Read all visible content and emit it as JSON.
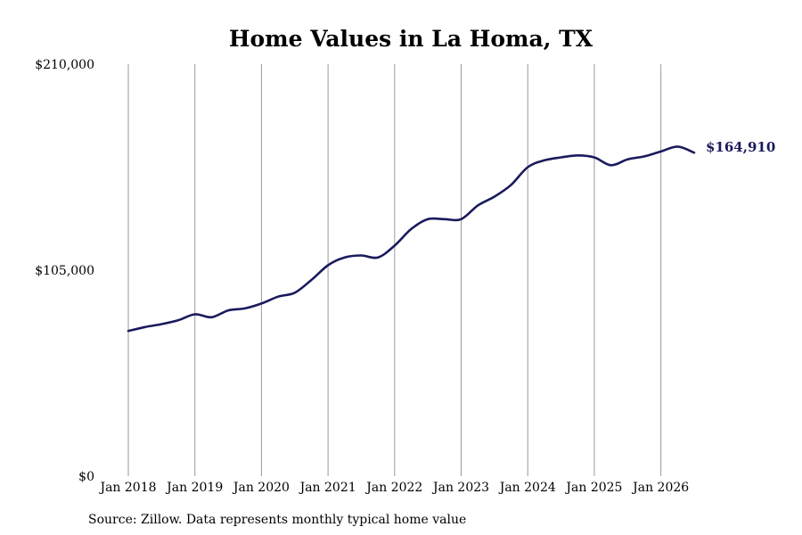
{
  "chart_data": {
    "type": "line",
    "title": "Home Values in La Homa, TX",
    "source": "Source: Zillow. Data represents monthly typical home value",
    "y_ticks": [
      {
        "value": 0,
        "label": "$0"
      },
      {
        "value": 105000,
        "label": "$105,000"
      },
      {
        "value": 210000,
        "label": "$210,000"
      }
    ],
    "ylim": [
      0,
      210000
    ],
    "xlim": [
      "2018-01",
      "2026-07"
    ],
    "x_ticks": [
      {
        "date": "2018-01",
        "label": "Jan 2018"
      },
      {
        "date": "2019-01",
        "label": "Jan 2019"
      },
      {
        "date": "2020-01",
        "label": "Jan 2020"
      },
      {
        "date": "2021-01",
        "label": "Jan 2021"
      },
      {
        "date": "2022-01",
        "label": "Jan 2022"
      },
      {
        "date": "2023-01",
        "label": "Jan 2023"
      },
      {
        "date": "2024-01",
        "label": "Jan 2024"
      },
      {
        "date": "2025-01",
        "label": "Jan 2025"
      },
      {
        "date": "2026-01",
        "label": "Jan 2026"
      }
    ],
    "grid": "vertical",
    "line_color": "#1a1a5e",
    "end_label": "$164,910",
    "series": [
      {
        "points": [
          [
            "2018-01",
            74000
          ],
          [
            "2018-04",
            76000
          ],
          [
            "2018-07",
            77500
          ],
          [
            "2018-10",
            79500
          ],
          [
            "2019-01",
            82500
          ],
          [
            "2019-04",
            81000
          ],
          [
            "2019-07",
            84500
          ],
          [
            "2019-10",
            85500
          ],
          [
            "2020-01",
            88000
          ],
          [
            "2020-04",
            91500
          ],
          [
            "2020-07",
            93500
          ],
          [
            "2020-10",
            100000
          ],
          [
            "2021-01",
            107500
          ],
          [
            "2021-04",
            111500
          ],
          [
            "2021-07",
            112500
          ],
          [
            "2021-10",
            111500
          ],
          [
            "2022-01",
            117500
          ],
          [
            "2022-04",
            126000
          ],
          [
            "2022-07",
            131000
          ],
          [
            "2022-10",
            131000
          ],
          [
            "2023-01",
            131000
          ],
          [
            "2023-04",
            138000
          ],
          [
            "2023-07",
            142500
          ],
          [
            "2023-10",
            148500
          ],
          [
            "2024-01",
            157500
          ],
          [
            "2024-04",
            161000
          ],
          [
            "2024-07",
            162500
          ],
          [
            "2024-10",
            163500
          ],
          [
            "2025-01",
            162500
          ],
          [
            "2025-04",
            158500
          ],
          [
            "2025-07",
            161500
          ],
          [
            "2025-10",
            163000
          ],
          [
            "2026-01",
            165500
          ],
          [
            "2026-04",
            168000
          ],
          [
            "2026-07",
            164910
          ]
        ]
      }
    ]
  }
}
